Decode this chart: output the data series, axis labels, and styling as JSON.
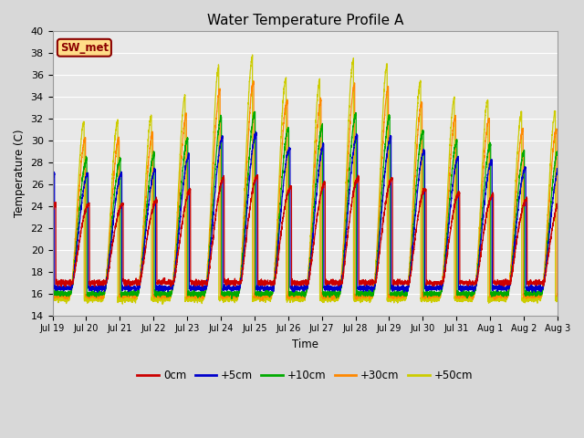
{
  "title": "Water Temperature Profile A",
  "xlabel": "Time",
  "ylabel": "Temperature (C)",
  "ylim": [
    14,
    40
  ],
  "yticks": [
    14,
    16,
    18,
    20,
    22,
    24,
    26,
    28,
    30,
    32,
    34,
    36,
    38,
    40
  ],
  "bg_color": "#d8d8d8",
  "plot_bg_color": "#e8e8e8",
  "tick_labels": [
    "Jul 19",
    "Jul 20",
    "Jul 21",
    "Jul 22",
    "Jul 23",
    "Jul 24",
    "Jul 25",
    "Jul 26",
    "Jul 27",
    "Jul 28",
    "Jul 29",
    "Jul 30",
    "Jul 31",
    "Aug 1",
    "Aug 2",
    "Aug 3"
  ],
  "series_colors": [
    "#cc0000",
    "#0000cc",
    "#00aa00",
    "#ff8800",
    "#cccc00"
  ],
  "series_labels": [
    "0cm",
    "+5cm",
    "+10cm",
    "+30cm",
    "+50cm"
  ],
  "annotation_text": "SW_met",
  "annotation_color": "#8b0000",
  "annotation_bg": "#ffdd88",
  "annotation_border": "#8b0000"
}
